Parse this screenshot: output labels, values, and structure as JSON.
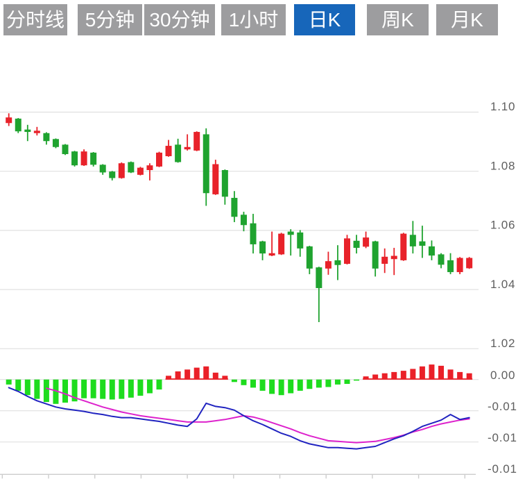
{
  "tabs": [
    {
      "label": "分时线",
      "selected": false
    },
    {
      "label": "5分钟",
      "selected": false
    },
    {
      "label": "30分钟",
      "selected": false
    },
    {
      "label": "1小时",
      "selected": false
    },
    {
      "label": "日K",
      "selected": true
    },
    {
      "label": "周K",
      "selected": false
    },
    {
      "label": "月K",
      "selected": false
    }
  ],
  "colors": {
    "tab_gray": "#9d9d9f",
    "tab_active_blue": "#1766ba",
    "up_red": "#e8222a",
    "down_green": "#1fa32f",
    "macd_green": "#1edc1e",
    "macd_red": "#ea2028",
    "dif_blue": "#2023c0",
    "dea_magenta": "#dd22cc",
    "gridline": "#e0e0e0",
    "axis_line": "#cccccc",
    "label_gray": "#5e5e5e"
  },
  "axis": {
    "price_labels": [
      "1.10",
      "1.08",
      "1.06",
      "1.04",
      "1.02"
    ],
    "macd_labels": [
      "0.00",
      "-0.01",
      "-0.01",
      "-0.01"
    ]
  },
  "chart_data": {
    "type": "candlestick",
    "title": "",
    "panels": [
      "price",
      "macd"
    ],
    "price_gridlines": [
      1.1,
      1.08,
      1.06,
      1.04,
      1.02
    ],
    "price_ylim": [
      1.015,
      1.103
    ],
    "macd_gridlines": [
      0.0,
      -0.005,
      -0.01
    ],
    "macd_ylim": [
      -0.0155,
      0.003
    ],
    "legend": "none",
    "candles_ohlc": [
      [
        1.0963,
        1.0996,
        1.0953,
        1.0982
      ],
      [
        1.0978,
        1.098,
        1.0929,
        1.0935
      ],
      [
        1.0941,
        1.0957,
        1.0902,
        1.0933
      ],
      [
        1.0929,
        1.095,
        1.0921,
        1.0937
      ],
      [
        1.0929,
        1.0932,
        1.089,
        1.0902
      ],
      [
        1.0909,
        1.0911,
        1.0878,
        1.0882
      ],
      [
        1.089,
        1.0892,
        1.0855,
        1.0858
      ],
      [
        1.0867,
        1.0869,
        1.0816,
        1.082
      ],
      [
        1.082,
        1.0874,
        1.0818,
        1.0867
      ],
      [
        1.0863,
        1.0865,
        1.0816,
        1.0822
      ],
      [
        1.0822,
        1.0824,
        1.0788,
        1.0796
      ],
      [
        1.0799,
        1.0801,
        1.0769,
        1.0777
      ],
      [
        1.0777,
        1.083,
        1.0775,
        1.0827
      ],
      [
        1.0831,
        1.0833,
        1.0794,
        1.0796
      ],
      [
        1.0788,
        1.0815,
        1.0786,
        1.0812
      ],
      [
        1.0804,
        1.0827,
        1.0769,
        1.082
      ],
      [
        1.0816,
        1.0866,
        1.0814,
        1.0863
      ],
      [
        1.0851,
        1.0906,
        1.0849,
        1.0886
      ],
      [
        1.089,
        1.091,
        1.0829,
        1.0831
      ],
      [
        1.0874,
        1.0925,
        1.087,
        1.0882
      ],
      [
        1.087,
        1.0935,
        1.0868,
        1.0933
      ],
      [
        1.0925,
        1.0945,
        1.0683,
        1.0726
      ],
      [
        1.0722,
        1.0839,
        1.072,
        1.0824
      ],
      [
        1.0804,
        1.0806,
        1.0687,
        1.0714
      ],
      [
        1.071,
        1.0733,
        1.0628,
        1.0646
      ],
      [
        1.0653,
        1.0663,
        1.0597,
        1.0618
      ],
      [
        1.0624,
        1.0656,
        1.0522,
        1.0553
      ],
      [
        1.0563,
        1.0565,
        1.0499,
        1.0522
      ],
      [
        1.0515,
        1.0596,
        1.0513,
        1.0523
      ],
      [
        1.0519,
        1.0592,
        1.0517,
        1.0589
      ],
      [
        1.0596,
        1.0604,
        1.0515,
        1.0585
      ],
      [
        1.0593,
        1.0601,
        1.0511,
        1.0539
      ],
      [
        1.0546,
        1.0548,
        1.0452,
        1.0471
      ],
      [
        1.0475,
        1.0477,
        1.029,
        1.0405
      ],
      [
        1.0471,
        1.0528,
        1.045,
        1.0496
      ],
      [
        1.0499,
        1.055,
        1.0432,
        1.0483
      ],
      [
        1.0487,
        1.0585,
        1.0485,
        1.0573
      ],
      [
        1.0565,
        1.0585,
        1.0522,
        1.0541
      ],
      [
        1.0545,
        1.0596,
        1.054,
        1.0576
      ],
      [
        1.0563,
        1.0565,
        1.0444,
        1.0471
      ],
      [
        1.0487,
        1.0539,
        1.0456,
        1.0511
      ],
      [
        1.0503,
        1.0541,
        1.0449,
        1.0514
      ],
      [
        1.0499,
        1.0592,
        1.0497,
        1.0589
      ],
      [
        1.0585,
        1.0632,
        1.0522,
        1.0546
      ],
      [
        1.0563,
        1.0616,
        1.0507,
        1.0548
      ],
      [
        1.0546,
        1.0566,
        1.0499,
        1.0515
      ],
      [
        1.0519,
        1.0523,
        1.0472,
        1.0484
      ],
      [
        1.0499,
        1.0523,
        1.0452,
        1.0459
      ],
      [
        1.0459,
        1.051,
        1.0452,
        1.0507
      ],
      [
        1.0472,
        1.051,
        1.047,
        1.0507
      ]
    ],
    "macd_histogram": [
      -0.0008,
      -0.0018,
      -0.0025,
      -0.0031,
      -0.0036,
      -0.0039,
      -0.0037,
      -0.0035,
      -0.003,
      -0.003,
      -0.0031,
      -0.0032,
      -0.0031,
      -0.0029,
      -0.0026,
      -0.0022,
      -0.0016,
      0.0006,
      0.0013,
      0.0016,
      0.0019,
      0.0021,
      0.0011,
      0.0006,
      -0.0004,
      -0.0009,
      -0.0013,
      -0.0018,
      -0.0023,
      -0.0025,
      -0.0022,
      -0.0018,
      -0.0015,
      -0.0013,
      -0.0012,
      -0.0008,
      -0.0007,
      -0.0001,
      0.0005,
      0.0008,
      0.001,
      0.0012,
      0.0014,
      0.0017,
      0.0021,
      0.0024,
      0.0022,
      0.0016,
      0.0012,
      0.001
    ],
    "dif_line": [
      -0.0013,
      -0.0019,
      -0.0027,
      -0.0034,
      -0.0039,
      -0.0044,
      -0.0047,
      -0.0049,
      -0.0051,
      -0.0054,
      -0.0056,
      -0.0059,
      -0.0061,
      -0.0061,
      -0.0063,
      -0.0065,
      -0.0067,
      -0.007,
      -0.0073,
      -0.0075,
      -0.0063,
      -0.0038,
      -0.0043,
      -0.0045,
      -0.0049,
      -0.0058,
      -0.0066,
      -0.0072,
      -0.0079,
      -0.0086,
      -0.0091,
      -0.0098,
      -0.0103,
      -0.0106,
      -0.0109,
      -0.0109,
      -0.011,
      -0.0111,
      -0.0109,
      -0.0107,
      -0.0101,
      -0.0095,
      -0.009,
      -0.0083,
      -0.0075,
      -0.007,
      -0.0065,
      -0.0056,
      -0.0064,
      -0.0061
    ],
    "dea_line": [
      null,
      null,
      null,
      null,
      -0.0014,
      -0.0018,
      -0.0023,
      -0.0029,
      -0.0034,
      -0.0039,
      -0.0044,
      -0.0048,
      -0.0052,
      -0.0055,
      -0.0058,
      -0.006,
      -0.0062,
      -0.0064,
      -0.0066,
      -0.0068,
      -0.0068,
      -0.0068,
      -0.0066,
      -0.0064,
      -0.0061,
      -0.0058,
      -0.006,
      -0.0064,
      -0.0069,
      -0.0074,
      -0.0079,
      -0.0085,
      -0.009,
      -0.0094,
      -0.0098,
      -0.0099,
      -0.01,
      -0.0101,
      -0.01,
      -0.0099,
      -0.0096,
      -0.0093,
      -0.0089,
      -0.0084,
      -0.008,
      -0.0075,
      -0.0071,
      -0.0068,
      -0.0065,
      -0.0063
    ]
  }
}
